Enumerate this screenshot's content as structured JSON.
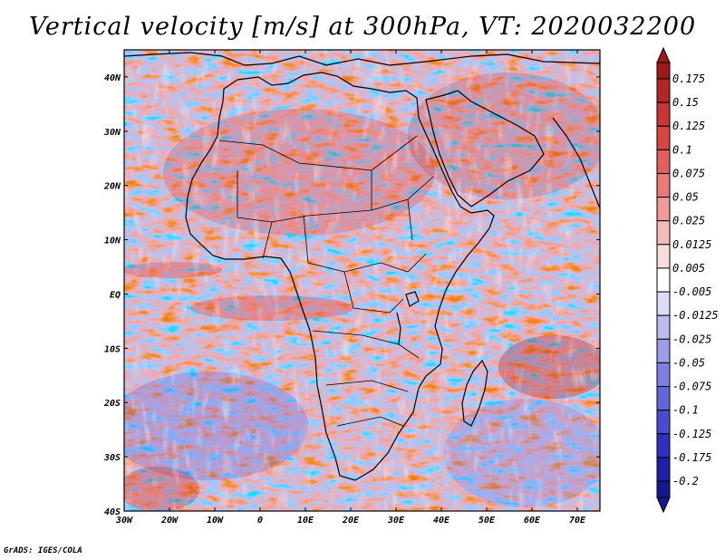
{
  "title": "Vertical velocity [m/s] at 300hPa, VT: 2020032200",
  "credit": "GrADS: IGES/COLA",
  "map": {
    "lon_range": [
      -30,
      75
    ],
    "lat_range": [
      -40,
      45
    ],
    "lon_ticks": [
      "30W",
      "20W",
      "10W",
      "0",
      "10E",
      "20E",
      "30E",
      "40E",
      "50E",
      "60E",
      "70E"
    ],
    "lat_ticks": [
      "40N",
      "30N",
      "20N",
      "10N",
      "EQ",
      "10S",
      "20S",
      "30S",
      "40S"
    ]
  },
  "colorbar": {
    "levels": [
      "0.175",
      "0.15",
      "0.125",
      "0.1",
      "0.075",
      "0.05",
      "0.025",
      "0.0125",
      "0.005",
      "-0.005",
      "-0.0125",
      "-0.025",
      "-0.05",
      "-0.075",
      "-0.1",
      "-0.125",
      "-0.175",
      "-0.2"
    ],
    "colors": [
      "#9e1a1a",
      "#b42626",
      "#c93434",
      "#d94545",
      "#e35e5e",
      "#ea7a7a",
      "#f09a9a",
      "#f6bcbc",
      "#fbdcdc",
      "#ffffff",
      "#dcdcf8",
      "#bcbcf2",
      "#9c9cea",
      "#7f7fe2",
      "#6464da",
      "#4a4ad0",
      "#3030c0",
      "#1e1ea8",
      "#16168e"
    ]
  }
}
